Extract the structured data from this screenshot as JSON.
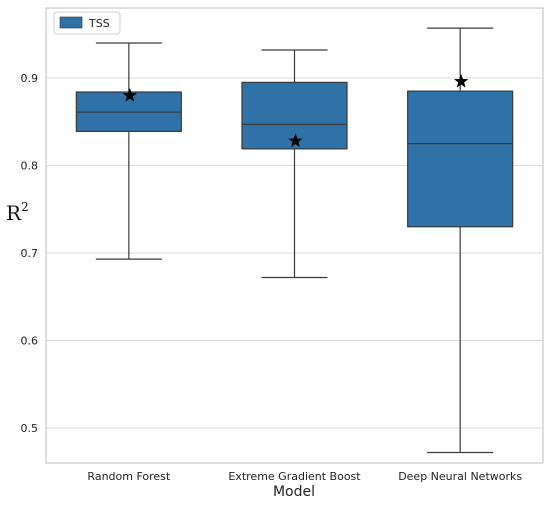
{
  "chart_data": {
    "type": "box",
    "categories": [
      "Random Forest",
      "Extreme Gradient Boost",
      "Deep Neural Networks"
    ],
    "series": [
      {
        "name": "TSS",
        "color": "#2f72a8",
        "boxes": [
          {
            "whisker_low": 0.693,
            "q1": 0.839,
            "median": 0.861,
            "q3": 0.884,
            "whisker_high": 0.94,
            "marker": 0.88
          },
          {
            "whisker_low": 0.672,
            "q1": 0.819,
            "median": 0.847,
            "q3": 0.895,
            "whisker_high": 0.932,
            "marker": 0.828
          },
          {
            "whisker_low": 0.472,
            "q1": 0.73,
            "median": 0.825,
            "q3": 0.885,
            "whisker_high": 0.957,
            "marker": 0.896
          }
        ]
      }
    ],
    "xlabel": "Model",
    "ylabel": "R",
    "ylabel_sup": "2",
    "ylim": [
      0.46,
      0.98
    ],
    "yticks": [
      "0.5",
      "0.6",
      "0.7",
      "0.8",
      "0.9"
    ],
    "grid": "horizontal",
    "legend_position": "top-left",
    "marker_symbol": "star"
  }
}
